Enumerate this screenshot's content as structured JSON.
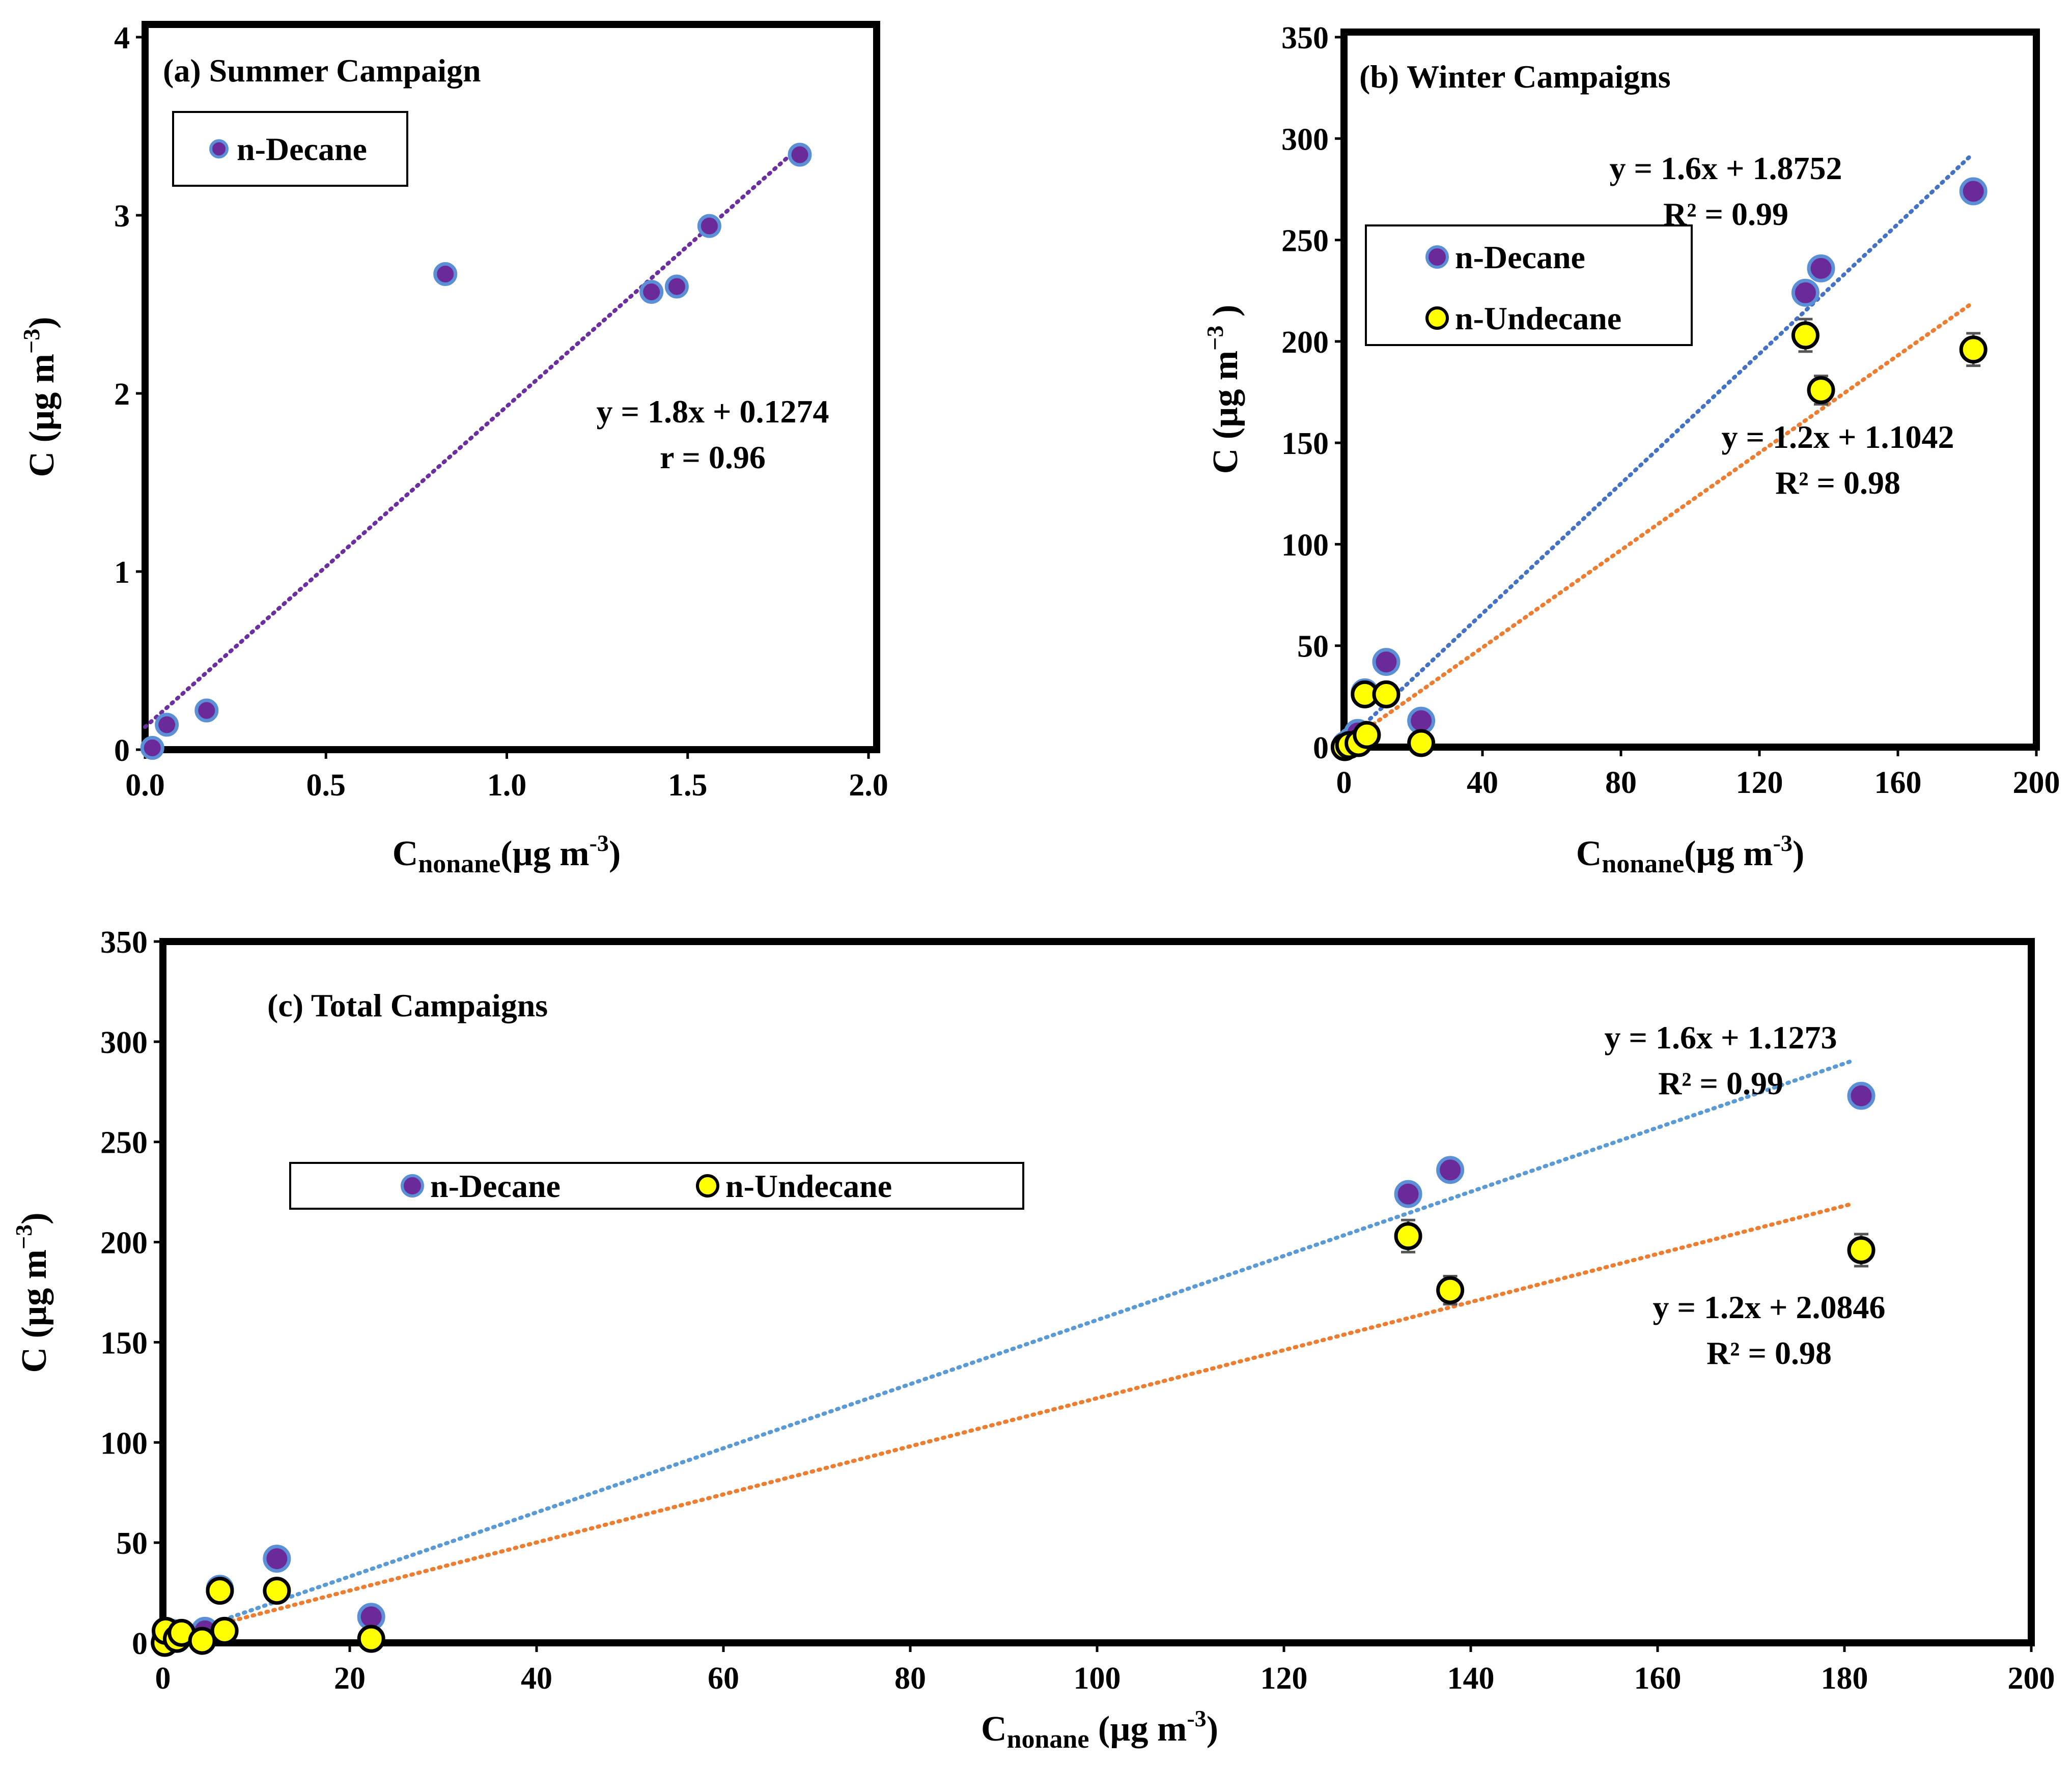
{
  "chart_data": [
    {
      "id": "a",
      "type": "scatter",
      "title": "(a) Summer Campaign",
      "xlabel": {
        "main": "C",
        "sub": "nonane",
        "rest": "(µg m",
        "sup": "-3",
        "end": ")"
      },
      "ylabel": {
        "main": "C (µg m",
        "sup": "−3",
        "end": ")"
      },
      "xlim": [
        0,
        2
      ],
      "ylim": [
        0,
        4
      ],
      "xticks": [
        "0.0",
        "0.5",
        "1.0",
        "1.5",
        "2.0"
      ],
      "yticks": [
        "0",
        "1",
        "2",
        "3",
        "4"
      ],
      "series": [
        {
          "name": "n-Decane",
          "fill": "#6a2a9a",
          "stroke": "#5b8fd6",
          "x": [
            0.02,
            0.06,
            0.17,
            0.83,
            1.4,
            1.47,
            1.56,
            1.81
          ],
          "y": [
            0.01,
            0.14,
            0.22,
            2.67,
            2.57,
            2.6,
            2.94,
            3.34
          ],
          "err": [
            0,
            0,
            0,
            0,
            0,
            0,
            0,
            0
          ],
          "trend": {
            "slope": 1.8,
            "intercept": 0.1274,
            "x0": 0,
            "x1": 1.81,
            "color": "#6b2fa0"
          },
          "equation": "y = 1.8x + 0.1274",
          "stat": "r = 0.96"
        }
      ],
      "legend": [
        "n-Decane"
      ]
    },
    {
      "id": "b",
      "type": "scatter",
      "title": "(b) Winter Campaigns",
      "xlabel": {
        "main": "C",
        "sub": "nonane",
        "rest": "(µg m",
        "sup": "-3",
        "end": ")"
      },
      "ylabel": {
        "main": "C (µg m",
        "sup": "−3",
        "end": " )"
      },
      "xlim": [
        0,
        200
      ],
      "ylim": [
        0,
        350
      ],
      "xticks": [
        "0",
        "40",
        "80",
        "120",
        "160",
        "200"
      ],
      "yticks": [
        "0",
        "50",
        "100",
        "150",
        "200",
        "250",
        "300",
        "350"
      ],
      "series": [
        {
          "name": "n-Decane",
          "fill": "#6a2a9a",
          "stroke": "#5b8fd6",
          "x": [
            0.5,
            2.0,
            4.0,
            6.0,
            12.2,
            22.3,
            133.3,
            137.8,
            181.8
          ],
          "y": [
            1,
            3,
            7,
            27,
            42,
            13,
            224,
            236,
            274
          ],
          "err": [
            0,
            0,
            0,
            0,
            0,
            0,
            0,
            0,
            0
          ],
          "trend": {
            "slope": 1.6,
            "intercept": 1.8752,
            "x0": 0,
            "x1": 181,
            "color": "#4472c4"
          },
          "equation": "y = 1.6x + 1.8752",
          "stat": "R² = 0.99"
        },
        {
          "name": "n-Undecane",
          "fill": "#ffff00",
          "stroke": "#000000",
          "x": [
            0.2,
            1.5,
            4.2,
            6.0,
            6.6,
            12.2,
            22.3,
            133.3,
            137.8,
            181.8
          ],
          "y": [
            0,
            1,
            2,
            26,
            6,
            26,
            2,
            203,
            176,
            196
          ],
          "err": [
            0,
            0,
            0,
            0,
            0,
            0,
            0,
            8,
            7,
            8
          ],
          "trend": {
            "slope": 1.2,
            "intercept": 1.1042,
            "x0": 0,
            "x1": 181,
            "color": "#ed7d31"
          },
          "equation": "y = 1.2x + 1.1042",
          "stat": "R² = 0.98"
        }
      ],
      "legend": [
        "n-Decane",
        "n-Undecane"
      ]
    },
    {
      "id": "c",
      "type": "scatter",
      "title": "(c) Total Campaigns",
      "xlabel": {
        "main": "C",
        "sub": "nonane",
        "rest": " (µg m",
        "sup": "-3",
        "end": ")"
      },
      "ylabel": {
        "main": "C (µg m",
        "sup": "−3",
        "end": ")"
      },
      "xlim": [
        0,
        200
      ],
      "ylim": [
        0,
        350
      ],
      "xticks": [
        "0",
        "20",
        "40",
        "60",
        "80",
        "100",
        "120",
        "140",
        "160",
        "180",
        "200"
      ],
      "yticks": [
        "0",
        "50",
        "100",
        "150",
        "200",
        "250",
        "300",
        "350"
      ],
      "series": [
        {
          "name": "n-Decane",
          "fill": "#6a2a9a",
          "stroke": "#5b8fd6",
          "x": [
            0.3,
            1.0,
            2.0,
            4.5,
            6.1,
            12.2,
            22.3,
            133.3,
            137.8,
            181.8
          ],
          "y": [
            3,
            5,
            4,
            6,
            27,
            42,
            13,
            224,
            236,
            273
          ],
          "err": [
            0,
            0,
            0,
            0,
            0,
            0,
            0,
            0,
            0,
            0
          ],
          "trend": {
            "slope": 1.6,
            "intercept": 1.1273,
            "x0": 0,
            "x1": 181,
            "color": "#5b9bd5"
          },
          "equation": "y = 1.6x + 1.1273",
          "stat": "R² = 0.99"
        },
        {
          "name": "n-Undecane",
          "fill": "#ffff00",
          "stroke": "#000000",
          "x": [
            0.2,
            0.3,
            1.5,
            2.0,
            4.2,
            6.1,
            6.6,
            12.2,
            22.3,
            133.3,
            137.8,
            181.8
          ],
          "y": [
            0,
            6,
            2,
            5,
            1,
            26,
            6,
            26,
            2,
            203,
            176,
            196
          ],
          "err": [
            0,
            0,
            0,
            0,
            0,
            0,
            0,
            0,
            0,
            8,
            7,
            8
          ],
          "trend": {
            "slope": 1.2,
            "intercept": 2.0846,
            "x0": 0,
            "x1": 181,
            "color": "#ed7d31"
          },
          "equation": "y = 1.2x + 2.0846",
          "stat": "R² = 0.98"
        }
      ],
      "legend": [
        "n-Decane",
        "n-Undecane"
      ]
    }
  ]
}
